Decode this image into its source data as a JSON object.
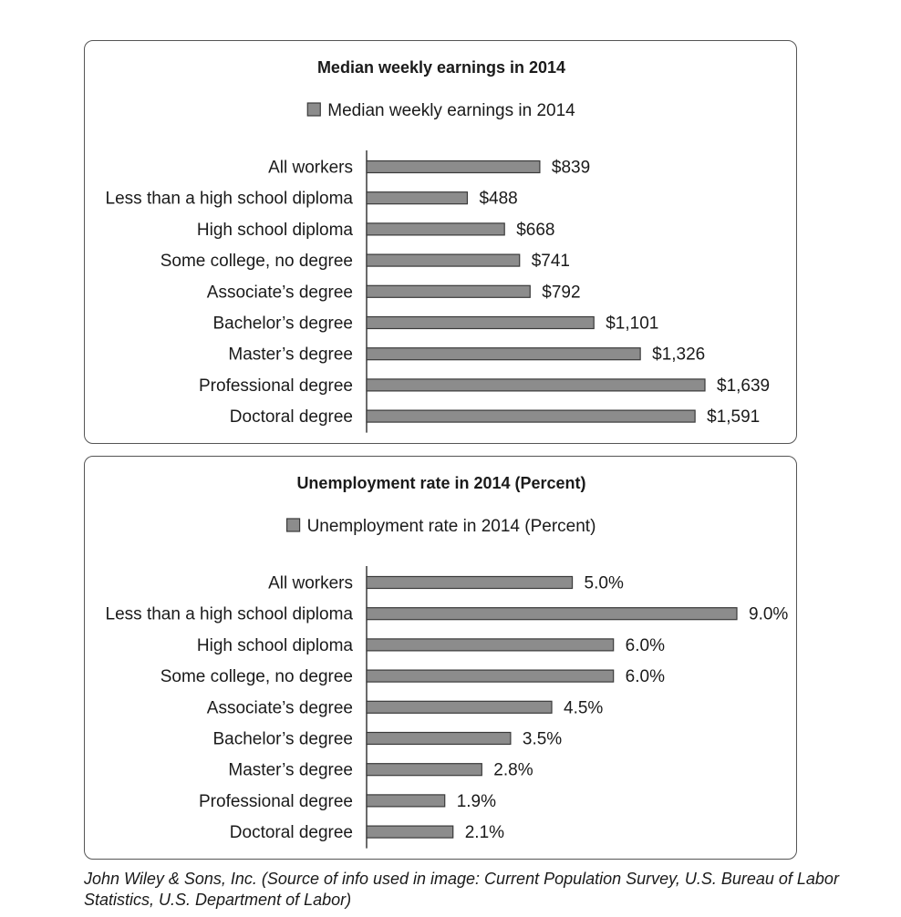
{
  "chart_data": [
    {
      "type": "bar",
      "orientation": "horizontal",
      "title": "Median weekly earnings in 2014",
      "legend": "Median weekly earnings in 2014",
      "legend_placement": "top",
      "xmax": 1750,
      "categories": [
        "All workers",
        "Less than a high school diploma",
        "High school diploma",
        "Some college, no degree",
        "Associate’s degree",
        "Bachelor’s degree",
        "Master’s degree",
        "Professional degree",
        "Doctoral degree"
      ],
      "values": [
        839,
        488,
        668,
        741,
        792,
        1101,
        1326,
        1639,
        1591
      ],
      "labels": [
        "$839",
        "$488",
        "$668",
        "$741",
        "$792",
        "$1,101",
        "$1,326",
        "$1,639",
        "$1,591"
      ],
      "color": "#8c8c8c"
    },
    {
      "type": "bar",
      "orientation": "horizontal",
      "title": "Unemployment rate in 2014 (Percent)",
      "legend": "Unemployment rate in 2014 (Percent)",
      "legend_placement": "top",
      "xmax": 9.0,
      "categories": [
        "All workers",
        "Less than a high school diploma",
        "High school diploma",
        "Some college, no degree",
        "Associate’s degree",
        "Bachelor’s degree",
        "Master’s degree",
        "Professional degree",
        "Doctoral degree"
      ],
      "values": [
        5.0,
        9.0,
        6.0,
        6.0,
        4.5,
        3.5,
        2.8,
        1.9,
        2.1
      ],
      "labels": [
        "5.0%",
        "9.0%",
        "6.0%",
        "6.0%",
        "4.5%",
        "3.5%",
        "2.8%",
        "1.9%",
        "2.1%"
      ],
      "color": "#8c8c8c"
    }
  ],
  "caption": "John Wiley & Sons, Inc. (Source of info used in image: Current Population Survey, U.S. Bureau of Labor Statistics, U.S. Department of Labor)"
}
